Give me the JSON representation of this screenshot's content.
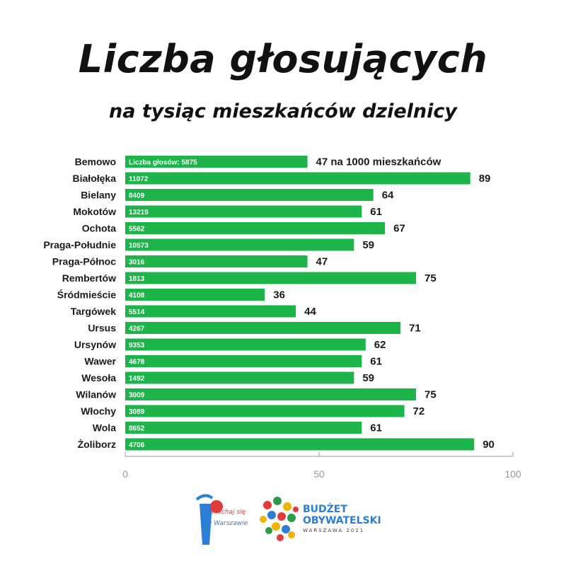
{
  "title": "Liczba głosujących",
  "subtitle": "na tysiąc mieszkańców dzielnicy",
  "colors": {
    "bar": "#1db54a",
    "axis": "#9a9a9a",
    "text": "#1a1a1a"
  },
  "chart_data": {
    "type": "bar",
    "orientation": "horizontal",
    "categories": [
      "Bemowo",
      "Białołęka",
      "Bielany",
      "Mokotów",
      "Ochota",
      "Praga-Południe",
      "Praga-Północ",
      "Rembertów",
      "Śródmieście",
      "Targówek",
      "Ursus",
      "Ursynów",
      "Wawer",
      "Wesoła",
      "Wilanów",
      "Włochy",
      "Wola",
      "Żoliborz"
    ],
    "values": [
      47,
      89,
      64,
      61,
      67,
      59,
      47,
      75,
      36,
      44,
      71,
      62,
      61,
      59,
      75,
      72,
      61,
      90
    ],
    "value_labels": [
      "47 na 1000 mieszkańców",
      "89",
      "64",
      "61",
      "67",
      "59",
      "47",
      "75",
      "36",
      "44",
      "71",
      "62",
      "61",
      "59",
      "75",
      "72",
      "61",
      "90"
    ],
    "inner_labels": [
      "Liczba głosów: 5875",
      "11072",
      "8409",
      "13219",
      "5562",
      "10573",
      "3016",
      "1813",
      "4108",
      "5514",
      "4267",
      "9353",
      "4678",
      "1492",
      "3009",
      "3089",
      "8652",
      "4706"
    ],
    "xlim": [
      0,
      100
    ],
    "xticks": [
      0,
      50,
      100
    ],
    "xtick_labels": [
      "0",
      "50",
      "100"
    ],
    "grid": false
  },
  "logos": {
    "left": {
      "line1": "zakochaj się",
      "line2": "w Warszawie"
    },
    "right": {
      "line1": "BUDŻET",
      "line2": "OBYWATELSKI",
      "line3": "WARSZAWA 2021"
    }
  }
}
